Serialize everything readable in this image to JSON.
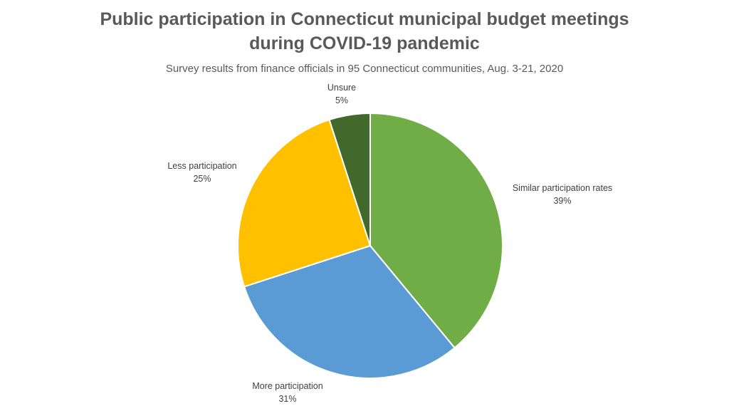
{
  "chart_data": {
    "type": "pie",
    "title_lines": [
      "Public participation in Connecticut municipal budget meetings",
      "during COVID-19 pandemic"
    ],
    "subtitle": "Survey results from finance officials in 95 Connecticut communities, Aug. 3-21, 2020",
    "slices": [
      {
        "label": "Similar participation rates",
        "value": 39,
        "value_label": "39%",
        "color": "#70ad47"
      },
      {
        "label": "More participation",
        "value": 31,
        "value_label": "31%",
        "color": "#5b9bd5"
      },
      {
        "label": "Less participation",
        "value": 25,
        "value_label": "25%",
        "color": "#ffc000"
      },
      {
        "label": "Unsure",
        "value": 5,
        "value_label": "5%",
        "color": "#43682b"
      }
    ],
    "start_angle": "top",
    "direction": "clockwise",
    "legend": "none",
    "data_labels": "outside-end"
  }
}
